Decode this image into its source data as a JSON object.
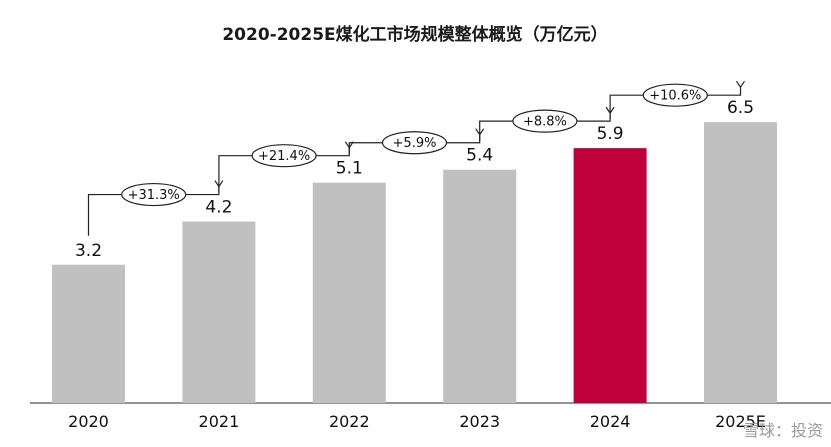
{
  "chart_data": {
    "type": "bar",
    "title": "2020-2025E煤化工市场规模整体概览（万亿元）",
    "categories": [
      "2020",
      "2021",
      "2022",
      "2023",
      "2024",
      "2025E"
    ],
    "values": [
      3.2,
      4.2,
      5.1,
      5.4,
      5.9,
      6.5
    ],
    "value_labels": [
      "3.2",
      "4.2",
      "5.1",
      "5.4",
      "5.9",
      "6.5"
    ],
    "growth_labels": [
      "+31.3%",
      "+21.4%",
      "+5.9%",
      "+8.8%",
      "+10.6%"
    ],
    "highlight_index": 4,
    "colors": {
      "bar": "#c0c0c0",
      "highlight": "#c0003b",
      "axis": "#555555",
      "bracket": "#222222"
    },
    "ylim": [
      0,
      7.5
    ],
    "grid": false
  },
  "footer_text": "雪球：投资"
}
